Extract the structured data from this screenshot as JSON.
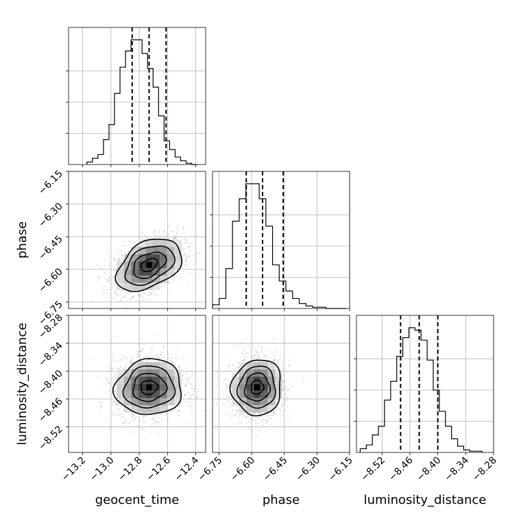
{
  "chart_data": {
    "type": "corner",
    "parameters": [
      "geocent_time",
      "phase",
      "luminosity_distance"
    ],
    "axis_labels": {
      "geocent_time": "geocent_time",
      "phase": "phase",
      "luminosity_distance": "luminosity_distance"
    },
    "ranges": {
      "geocent_time": [
        -13.3,
        -12.33
      ],
      "phase": [
        -6.78,
        -6.15
      ],
      "luminosity_distance": [
        -8.575,
        -8.28
      ]
    },
    "ticks": {
      "geocent_time": [
        -13.2,
        -13.0,
        -12.8,
        -12.6,
        -12.4
      ],
      "phase": [
        -6.75,
        -6.6,
        -6.45,
        -6.3,
        -6.15
      ],
      "luminosity_distance": [
        -8.52,
        -8.46,
        -8.4,
        -8.34,
        -8.28
      ]
    },
    "tick_labels": {
      "geocent_time": [
        "−13.2",
        "−13.0",
        "−12.8",
        "−12.6",
        "−12.4"
      ],
      "phase": [
        "−6.75",
        "−6.60",
        "−6.45",
        "−6.30",
        "−6.15"
      ],
      "luminosity_distance": [
        "−8.52",
        "−8.46",
        "−8.40",
        "−8.34",
        "−8.28"
      ]
    },
    "quantiles": {
      "geocent_time": [
        -12.85,
        -12.73,
        -12.61
      ],
      "phase": [
        -6.625,
        -6.55,
        -6.455
      ],
      "luminosity_distance": [
        -8.48,
        -8.44,
        -8.4
      ]
    },
    "histograms": {
      "geocent_time": {
        "edges_range": [
          -13.17,
          -12.39
        ],
        "counts": [
          2,
          5,
          8,
          20,
          32,
          57,
          78,
          91,
          100,
          100,
          89,
          77,
          62,
          39,
          19,
          12,
          6,
          3,
          1,
          0
        ]
      },
      "phase": {
        "edges_range": [
          -6.78,
          -6.167
        ],
        "counts": [
          3,
          8,
          32,
          70,
          88,
          100,
          100,
          88,
          66,
          35,
          22,
          14,
          8,
          4,
          2,
          1,
          1,
          0,
          0,
          0
        ]
      },
      "luminosity_distance": {
        "edges_range": [
          -8.567,
          -8.305
        ],
        "counts": [
          3,
          6,
          14,
          21,
          42,
          57,
          77,
          92,
          100,
          98,
          90,
          74,
          50,
          33,
          21,
          11,
          5,
          2,
          1,
          1
        ]
      }
    },
    "joint": [
      {
        "x": "geocent_time",
        "y": "phase",
        "center": [
          -12.73,
          -6.58
        ],
        "sigma": [
          0.115,
          0.06
        ],
        "rho": 0.4
      },
      {
        "x": "geocent_time",
        "y": "luminosity_distance",
        "center": [
          -12.73,
          -8.435
        ],
        "sigma": [
          0.118,
          0.03
        ],
        "rho": 0.05
      },
      {
        "x": "phase",
        "y": "luminosity_distance",
        "center": [
          -6.575,
          -8.435
        ],
        "sigma": [
          0.057,
          0.03
        ],
        "rho": 0.05
      }
    ],
    "grid": true
  }
}
